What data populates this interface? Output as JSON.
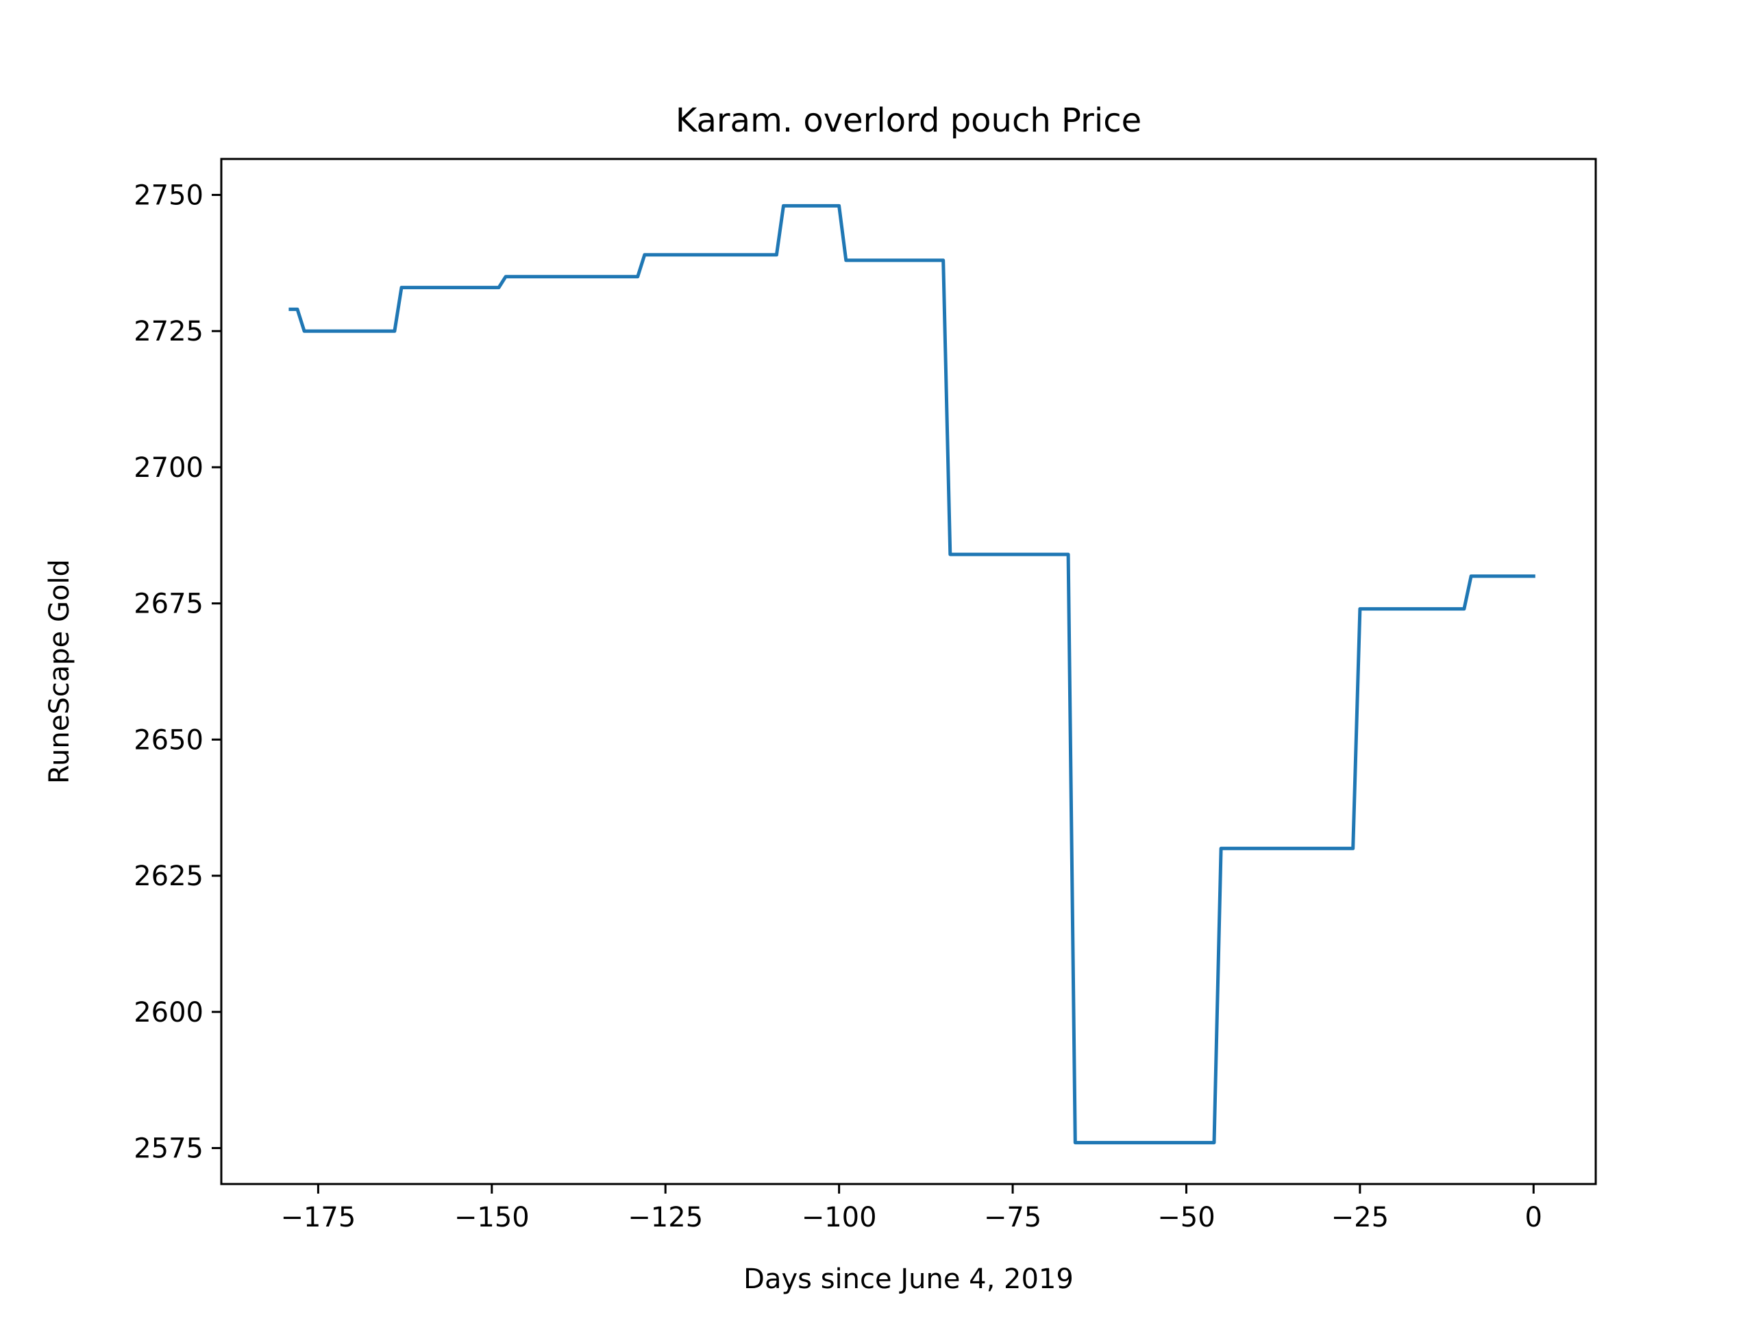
{
  "chart_data": {
    "type": "line",
    "title": "Karam. overlord pouch Price",
    "xlabel": "Days since June 4, 2019",
    "ylabel": "RuneScape Gold",
    "xlim": [
      -188.95,
      8.95
    ],
    "ylim": [
      2568.4,
      2756.6
    ],
    "xticks": [
      -175,
      -150,
      -125,
      -100,
      -75,
      -50,
      -25,
      0
    ],
    "xtick_labels": [
      "−175",
      "−150",
      "−125",
      "−100",
      "−75",
      "−50",
      "−25",
      "0"
    ],
    "yticks": [
      2575,
      2600,
      2625,
      2650,
      2675,
      2700,
      2725,
      2750
    ],
    "ytick_labels": [
      "2575",
      "2600",
      "2625",
      "2650",
      "2675",
      "2700",
      "2725",
      "2750"
    ],
    "grid": false,
    "series": [
      {
        "color": "#1f77b4",
        "x": [
          -179,
          -178,
          -177,
          -164,
          -163,
          -149,
          -148,
          -129,
          -128,
          -109,
          -108,
          -100,
          -99,
          -85,
          -84,
          -67,
          -66,
          -46,
          -45,
          -26,
          -25,
          -10,
          -9,
          0
        ],
        "y": [
          2729,
          2729,
          2725,
          2725,
          2733,
          2733,
          2735,
          2735,
          2739,
          2739,
          2748,
          2748,
          2738,
          2738,
          2684,
          2684,
          2576,
          2576,
          2630,
          2630,
          2674,
          2674,
          2680,
          2680
        ]
      }
    ]
  }
}
